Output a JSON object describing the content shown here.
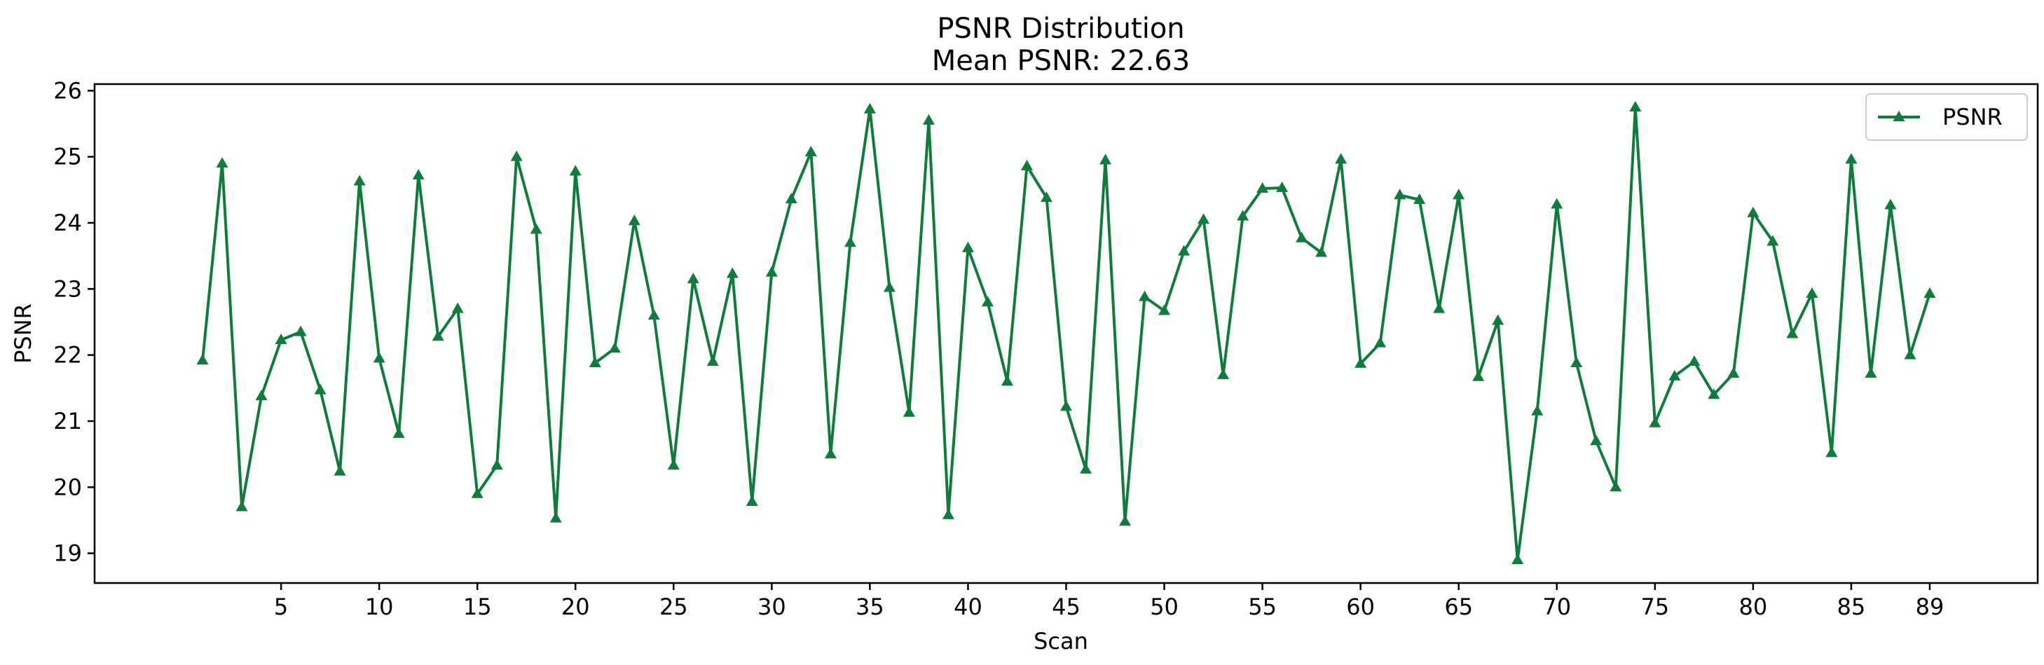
{
  "chart_data": {
    "type": "line",
    "title": "PSNR Distribution",
    "subtitle": "Mean PSNR: 22.63",
    "xlabel": "Scan",
    "ylabel": "PSNR",
    "xlim": [
      -4.5,
      94.5
    ],
    "ylim": [
      18.55,
      26.1
    ],
    "x_ticks": [
      5,
      10,
      15,
      20,
      25,
      30,
      35,
      40,
      45,
      50,
      55,
      60,
      65,
      70,
      75,
      80,
      85,
      89
    ],
    "y_ticks": [
      19,
      20,
      21,
      22,
      23,
      24,
      25,
      26
    ],
    "grid": false,
    "legend_position": "top-right",
    "color": "#107c3c",
    "marker": "triangle-up",
    "series": [
      {
        "name": "PSNR",
        "x": [
          1,
          2,
          3,
          4,
          5,
          6,
          7,
          8,
          9,
          10,
          11,
          12,
          13,
          14,
          15,
          16,
          17,
          18,
          19,
          20,
          21,
          22,
          23,
          24,
          25,
          26,
          27,
          28,
          29,
          30,
          31,
          32,
          33,
          34,
          35,
          36,
          37,
          38,
          39,
          40,
          41,
          42,
          43,
          44,
          45,
          46,
          47,
          48,
          49,
          50,
          51,
          52,
          53,
          54,
          55,
          56,
          57,
          58,
          59,
          60,
          61,
          62,
          63,
          64,
          65,
          66,
          67,
          68,
          69,
          70,
          71,
          72,
          73,
          74,
          75,
          76,
          77,
          78,
          79,
          80,
          81,
          82,
          83,
          84,
          85,
          86,
          87,
          88,
          89
        ],
        "values": [
          21.92,
          24.9,
          19.7,
          21.38,
          22.23,
          22.35,
          21.47,
          20.24,
          24.63,
          21.95,
          20.81,
          24.72,
          22.28,
          22.7,
          19.9,
          20.33,
          25.0,
          23.9,
          19.53,
          24.78,
          21.88,
          22.1,
          24.03,
          22.6,
          20.33,
          23.15,
          21.9,
          23.23,
          19.78,
          23.25,
          24.36,
          25.07,
          20.5,
          23.7,
          25.72,
          23.02,
          21.13,
          25.55,
          19.58,
          23.62,
          22.8,
          21.6,
          24.86,
          24.38,
          21.22,
          20.27,
          24.95,
          19.48,
          22.88,
          22.67,
          23.57,
          24.05,
          21.7,
          24.1,
          24.52,
          24.53,
          23.77,
          23.55,
          24.96,
          21.87,
          22.18,
          24.42,
          24.35,
          22.7,
          24.42,
          21.67,
          22.52,
          18.9,
          21.15,
          24.28,
          21.88,
          20.7,
          20.0,
          25.75,
          20.97,
          21.68,
          21.9,
          21.4,
          21.72,
          24.15,
          23.72,
          22.32,
          22.93,
          20.52,
          24.96,
          21.72,
          24.27,
          22.0,
          22.93
        ]
      }
    ]
  }
}
